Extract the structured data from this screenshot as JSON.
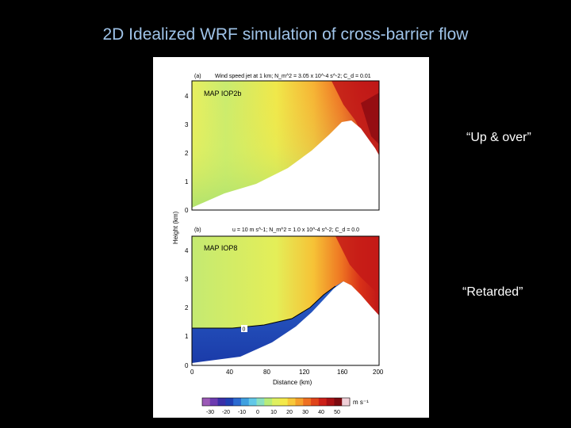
{
  "slide": {
    "title": "2D Idealized WRF simulation of cross-barrier flow",
    "callout_top": "“Up & over”",
    "callout_bottom": "“Retarded”"
  },
  "figure": {
    "panel_a": {
      "tag": "(a)",
      "header": "Wind speed jet at 1 km; N_m^2 = 3.05 x 10^-4 s^-2; C_d = 0.01",
      "case_label": "MAP IOP2b",
      "y_ticks": [
        "4",
        "3",
        "2",
        "1",
        "0"
      ]
    },
    "panel_b": {
      "tag": "(b)",
      "header": "u = 10 m s^-1; N_m^2 = 1.0 x 10^-4 s^-2; C_d = 0.0",
      "case_label": "MAP IOP8",
      "contour_label": "0",
      "y_ticks": [
        "4",
        "3",
        "2",
        "1",
        "0"
      ]
    },
    "x_axis": {
      "label": "Distance (km)",
      "ticks": [
        "0",
        "40",
        "80",
        "120",
        "160",
        "200"
      ]
    },
    "y_axis_label": "Height (km)",
    "colorbar": {
      "unit": "m s⁻¹",
      "ticks": [
        "-30",
        "-20",
        "-10",
        "0",
        "10",
        "20",
        "30",
        "40",
        "50"
      ],
      "colors": [
        "#9b59b6",
        "#6c3bb0",
        "#3a2fa8",
        "#1f3fb3",
        "#2b6ad0",
        "#3fa0e0",
        "#62c8e8",
        "#8be0c0",
        "#b8ec78",
        "#dff060",
        "#f4e94a",
        "#f8c83a",
        "#f5a02c",
        "#ee7021",
        "#e0441a",
        "#cc2018",
        "#a81014",
        "#7c0a10",
        "#f0d0d8"
      ]
    }
  }
}
